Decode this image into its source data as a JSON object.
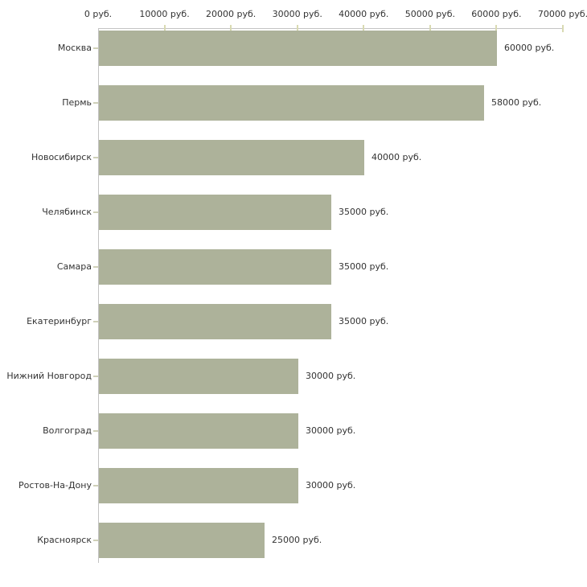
{
  "chart_data": {
    "type": "bar",
    "orientation": "horizontal",
    "title": "",
    "xlabel": "",
    "ylabel": "",
    "xlim": [
      0,
      70000
    ],
    "grid": false,
    "legend": false,
    "unit_suffix": " руб.",
    "categories": [
      "Москва",
      "Пермь",
      "Новосибирск",
      "Челябинск",
      "Самара",
      "Екатеринбург",
      "Нижний Новгород",
      "Волгоград",
      "Ростов-На-Дону",
      "Красноярск"
    ],
    "values": [
      60000,
      58000,
      40000,
      35000,
      35000,
      35000,
      30000,
      30000,
      30000,
      25000
    ],
    "value_labels": [
      "60000 руб.",
      "58000 руб.",
      "40000 руб.",
      "35000 руб.",
      "35000 руб.",
      "35000 руб.",
      "30000 руб.",
      "30000 руб.",
      "30000 руб.",
      "25000 руб."
    ],
    "x_tick_values": [
      0,
      10000,
      20000,
      30000,
      40000,
      50000,
      60000,
      70000
    ],
    "x_tick_labels": [
      "0 руб.",
      "10000 руб.",
      "20000 руб.",
      "30000 руб.",
      "40000 руб.",
      "50000 руб.",
      "60000 руб.",
      "70000 руб."
    ]
  },
  "colors": {
    "bar": "#adb29a",
    "axis_line": "#c3c3c3",
    "axis_tick": "#d9dab2",
    "category_tick": "#cfd0b8",
    "text": "#333333",
    "background": "#ffffff"
  }
}
